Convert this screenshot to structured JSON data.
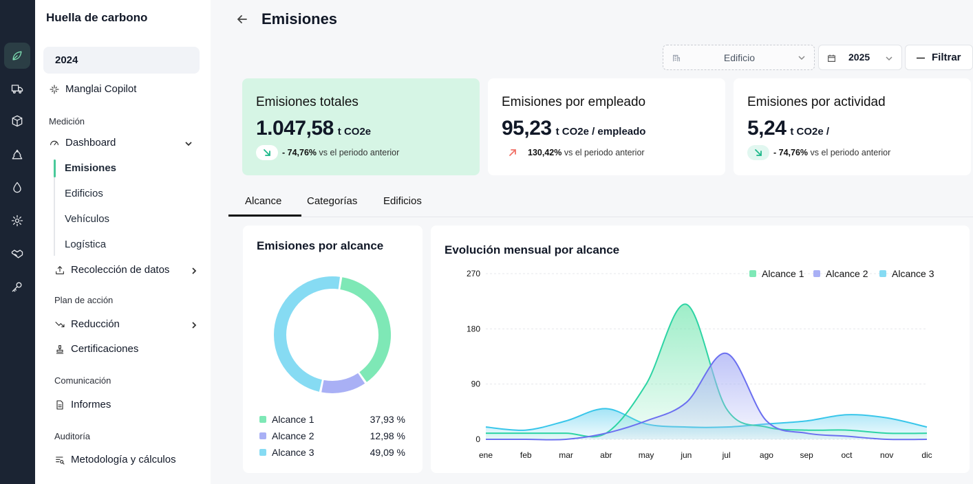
{
  "sidebar": {
    "title": "Huella de carbono",
    "year": "2024",
    "copilot": "Manglai Copilot",
    "sections": {
      "medicion": "Medición",
      "plan": "Plan de acción",
      "comunicacion": "Comunicación",
      "auditoria": "Auditoría"
    },
    "dashboard": "Dashboard",
    "sub_items": [
      "Emisiones",
      "Edificios",
      "Vehículos",
      "Logística"
    ],
    "recoleccion": "Recolección de datos",
    "reduccion": "Reducción",
    "certificaciones": "Certificaciones",
    "informes": "Informes",
    "metodologia": "Metodología y cálculos"
  },
  "header": {
    "title": "Emisiones"
  },
  "filters": {
    "building": "Edificio",
    "year": "2025",
    "filter_button": "Filtrar"
  },
  "kpis": [
    {
      "title": "Emisiones totales",
      "value": "1.047,58",
      "unit": "t CO2e",
      "delta": "- 74,76%",
      "delta_text": "vs el periodo anterior",
      "trend": "down"
    },
    {
      "title": "Emisiones por empleado",
      "value": "95,23",
      "unit": "t CO2e / empleado",
      "delta": "130,42%",
      "delta_text": "vs el periodo anterior",
      "trend": "up"
    },
    {
      "title": "Emisiones por actividad",
      "value": "5,24",
      "unit": "t CO2e /",
      "delta": "- 74,76%",
      "delta_text": "vs el periodo anterior",
      "trend": "down"
    }
  ],
  "tabs": [
    "Alcance",
    "Categorías",
    "Edificios"
  ],
  "donut": {
    "title": "Emisiones por alcance",
    "legend": [
      {
        "label": "Alcance 1",
        "pct": "37,93 %"
      },
      {
        "label": "Alcance 2",
        "pct": "12,98 %"
      },
      {
        "label": "Alcance 3",
        "pct": "49,09 %"
      }
    ]
  },
  "colors": {
    "alcance1": "#7ee8b6",
    "alcance2": "#a9b0f5",
    "alcance3": "#86dbf3",
    "line1": "#2dd4a4",
    "line2": "#6b6ff0",
    "line3": "#38c6ea",
    "accent_green": "#d6f5e5"
  },
  "chart_data": [
    {
      "type": "pie",
      "title": "Emisiones por alcance",
      "categories": [
        "Alcance 1",
        "Alcance 2",
        "Alcance 3"
      ],
      "values": [
        37.93,
        12.98,
        49.09
      ]
    },
    {
      "type": "area",
      "title": "Evolución mensual por alcance",
      "x": [
        "ene",
        "feb",
        "mar",
        "abr",
        "may",
        "jun",
        "jul",
        "ago",
        "sep",
        "oct",
        "nov",
        "dic"
      ],
      "yticks": [
        "0",
        "90",
        "180",
        "270"
      ],
      "ylim": [
        0,
        270
      ],
      "series": [
        {
          "name": "Alcance 1",
          "values": [
            10,
            10,
            10,
            10,
            90,
            220,
            50,
            20,
            15,
            15,
            10,
            10
          ]
        },
        {
          "name": "Alcance 2",
          "values": [
            0,
            0,
            0,
            10,
            30,
            60,
            140,
            30,
            10,
            5,
            0,
            0
          ]
        },
        {
          "name": "Alcance 3",
          "values": [
            20,
            15,
            30,
            50,
            25,
            20,
            20,
            25,
            30,
            40,
            35,
            20
          ]
        }
      ]
    }
  ]
}
